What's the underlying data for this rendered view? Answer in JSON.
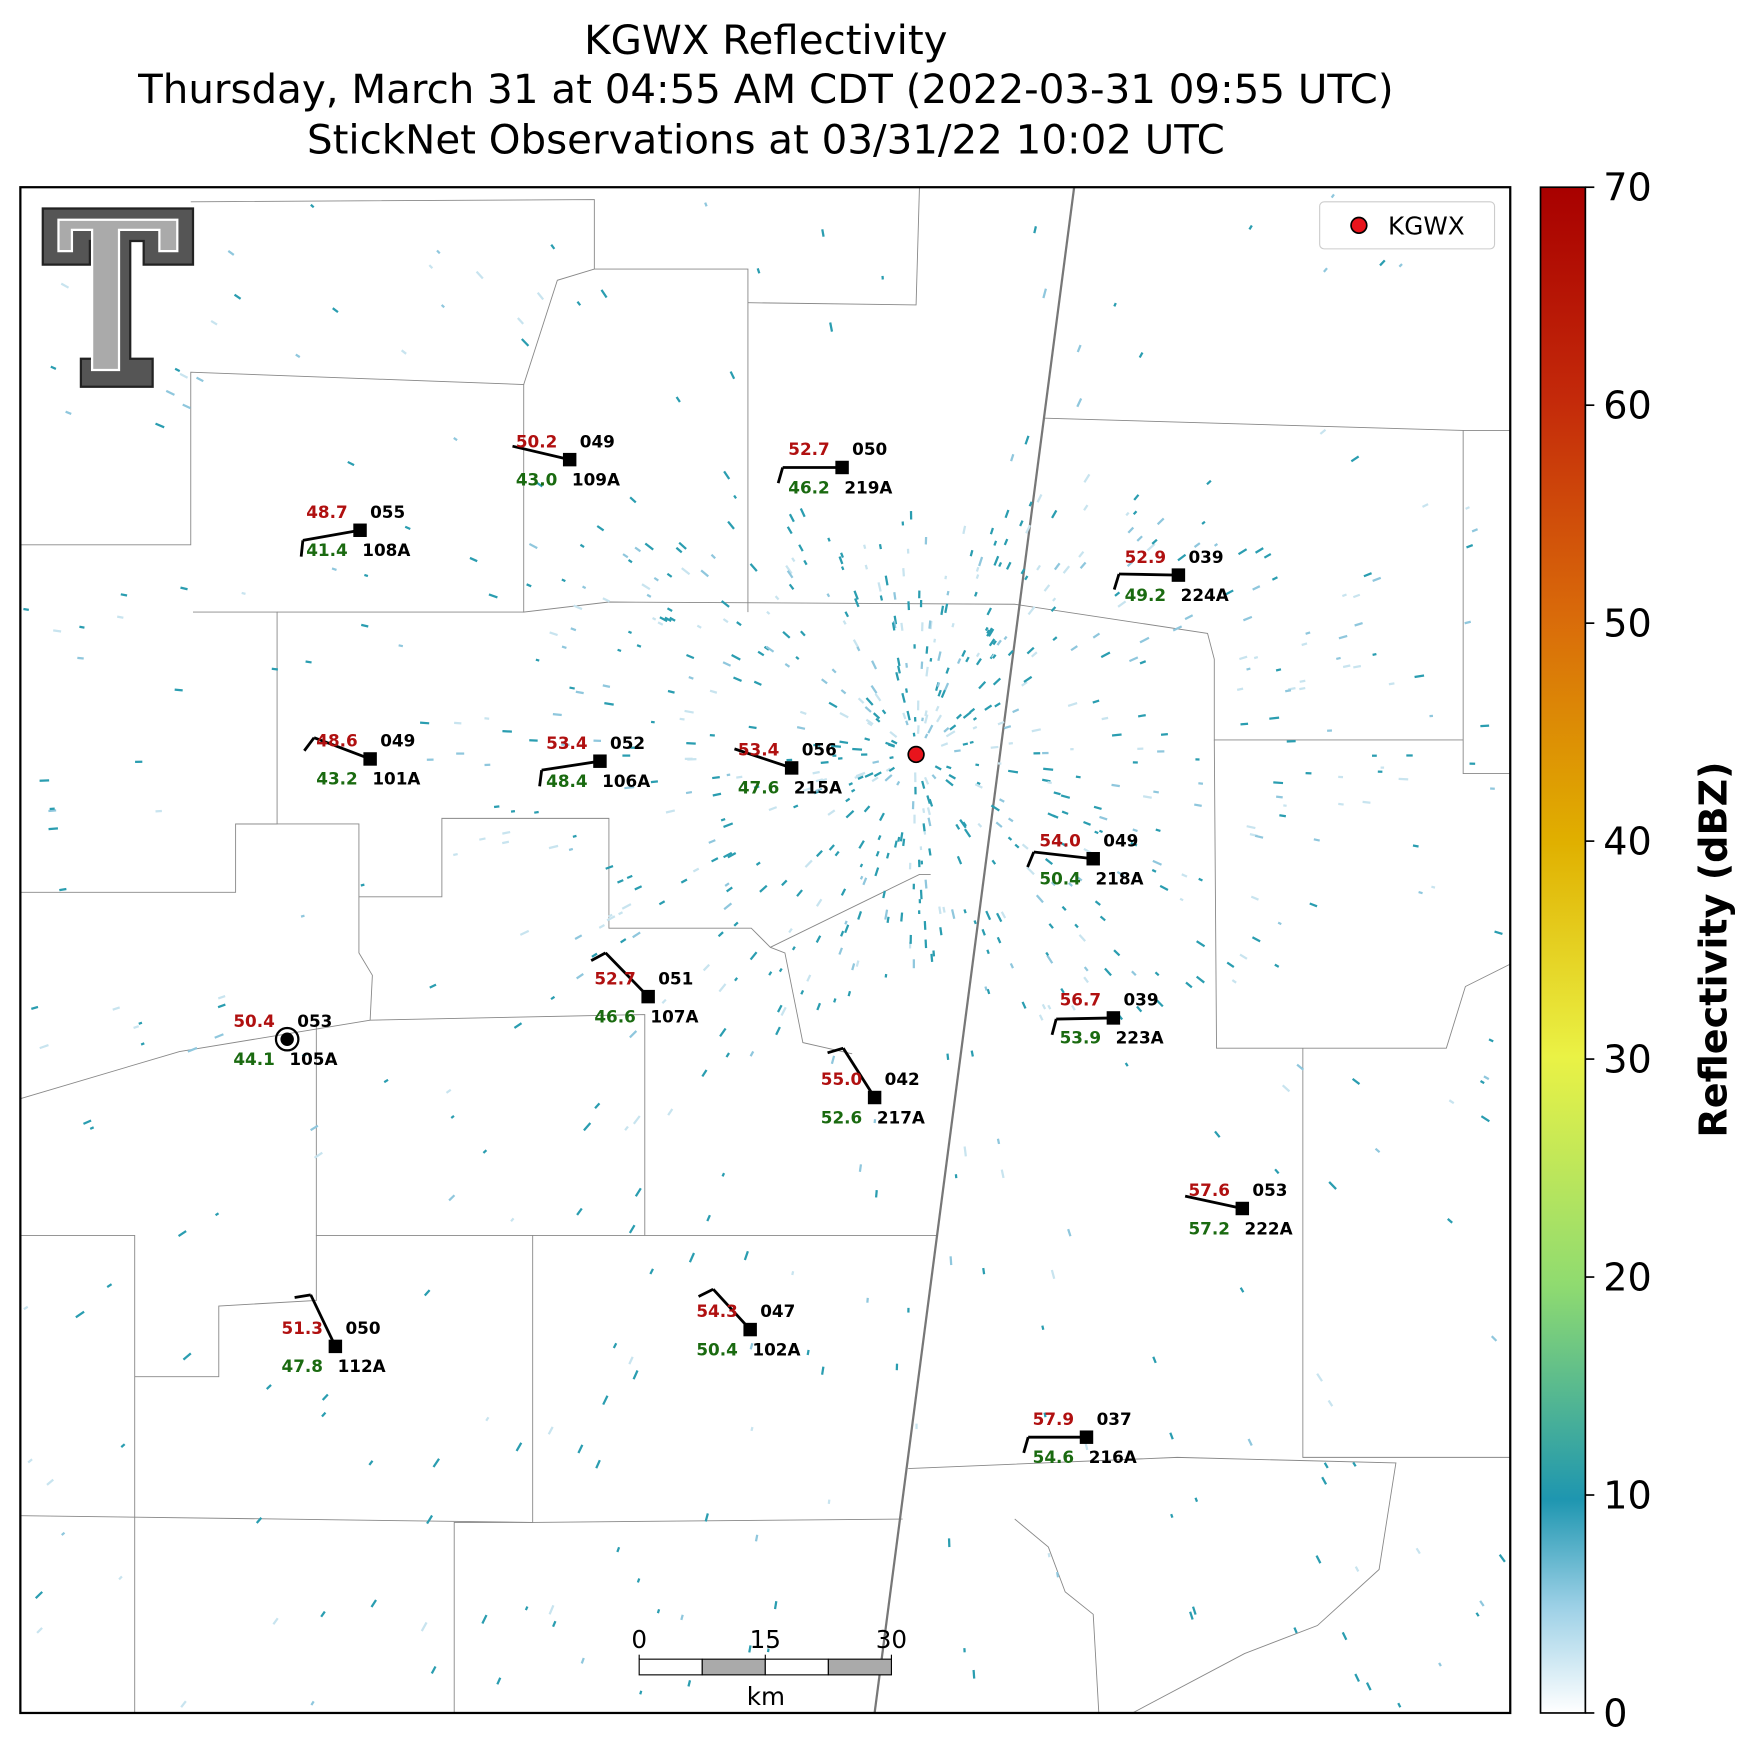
{
  "title": {
    "line1": "KGWX Reflectivity",
    "line2": "Thursday, March 31 at 04:55 AM CDT (2022-03-31 09:55 UTC)",
    "line3": "StickNet Observations at 03/31/22 10:02 UTC"
  },
  "legend": {
    "label": "KGWX"
  },
  "colorbar": {
    "label": "Reflectivity (dBZ)",
    "lim": [
      0,
      70
    ],
    "ticks": [
      0,
      10,
      20,
      30,
      40,
      50,
      60,
      70
    ]
  },
  "scale_bar": {
    "lim": [
      0,
      30
    ],
    "ticks": [
      0,
      15,
      30
    ],
    "unit": "km"
  },
  "stations": [
    {
      "id": "109A",
      "temperature": "50.2",
      "dewpoint": "43.0",
      "pressure": "049"
    },
    {
      "id": "219A",
      "temperature": "52.7",
      "dewpoint": "46.2",
      "pressure": "050"
    },
    {
      "id": "108A",
      "temperature": "48.7",
      "dewpoint": "41.4",
      "pressure": "055"
    },
    {
      "id": "224A",
      "temperature": "52.9",
      "dewpoint": "49.2",
      "pressure": "039"
    },
    {
      "id": "101A",
      "temperature": "48.6",
      "dewpoint": "43.2",
      "pressure": "049"
    },
    {
      "id": "106A",
      "temperature": "53.4",
      "dewpoint": "48.4",
      "pressure": "052"
    },
    {
      "id": "215A",
      "temperature": "53.4",
      "dewpoint": "47.6",
      "pressure": "056"
    },
    {
      "id": "218A",
      "temperature": "54.0",
      "dewpoint": "50.4",
      "pressure": "049"
    },
    {
      "id": "107A",
      "temperature": "52.7",
      "dewpoint": "46.6",
      "pressure": "051"
    },
    {
      "id": "223A",
      "temperature": "56.7",
      "dewpoint": "53.9",
      "pressure": "039"
    },
    {
      "id": "105A",
      "temperature": "50.4",
      "dewpoint": "44.1",
      "pressure": "053"
    },
    {
      "id": "217A",
      "temperature": "55.0",
      "dewpoint": "52.6",
      "pressure": "042"
    },
    {
      "id": "222A",
      "temperature": "57.6",
      "dewpoint": "57.2",
      "pressure": "053"
    },
    {
      "id": "102A",
      "temperature": "54.3",
      "dewpoint": "50.4",
      "pressure": "047"
    },
    {
      "id": "112A",
      "temperature": "51.3",
      "dewpoint": "47.8",
      "pressure": "050"
    },
    {
      "id": "216A",
      "temperature": "57.9",
      "dewpoint": "54.6",
      "pressure": "037"
    }
  ]
}
